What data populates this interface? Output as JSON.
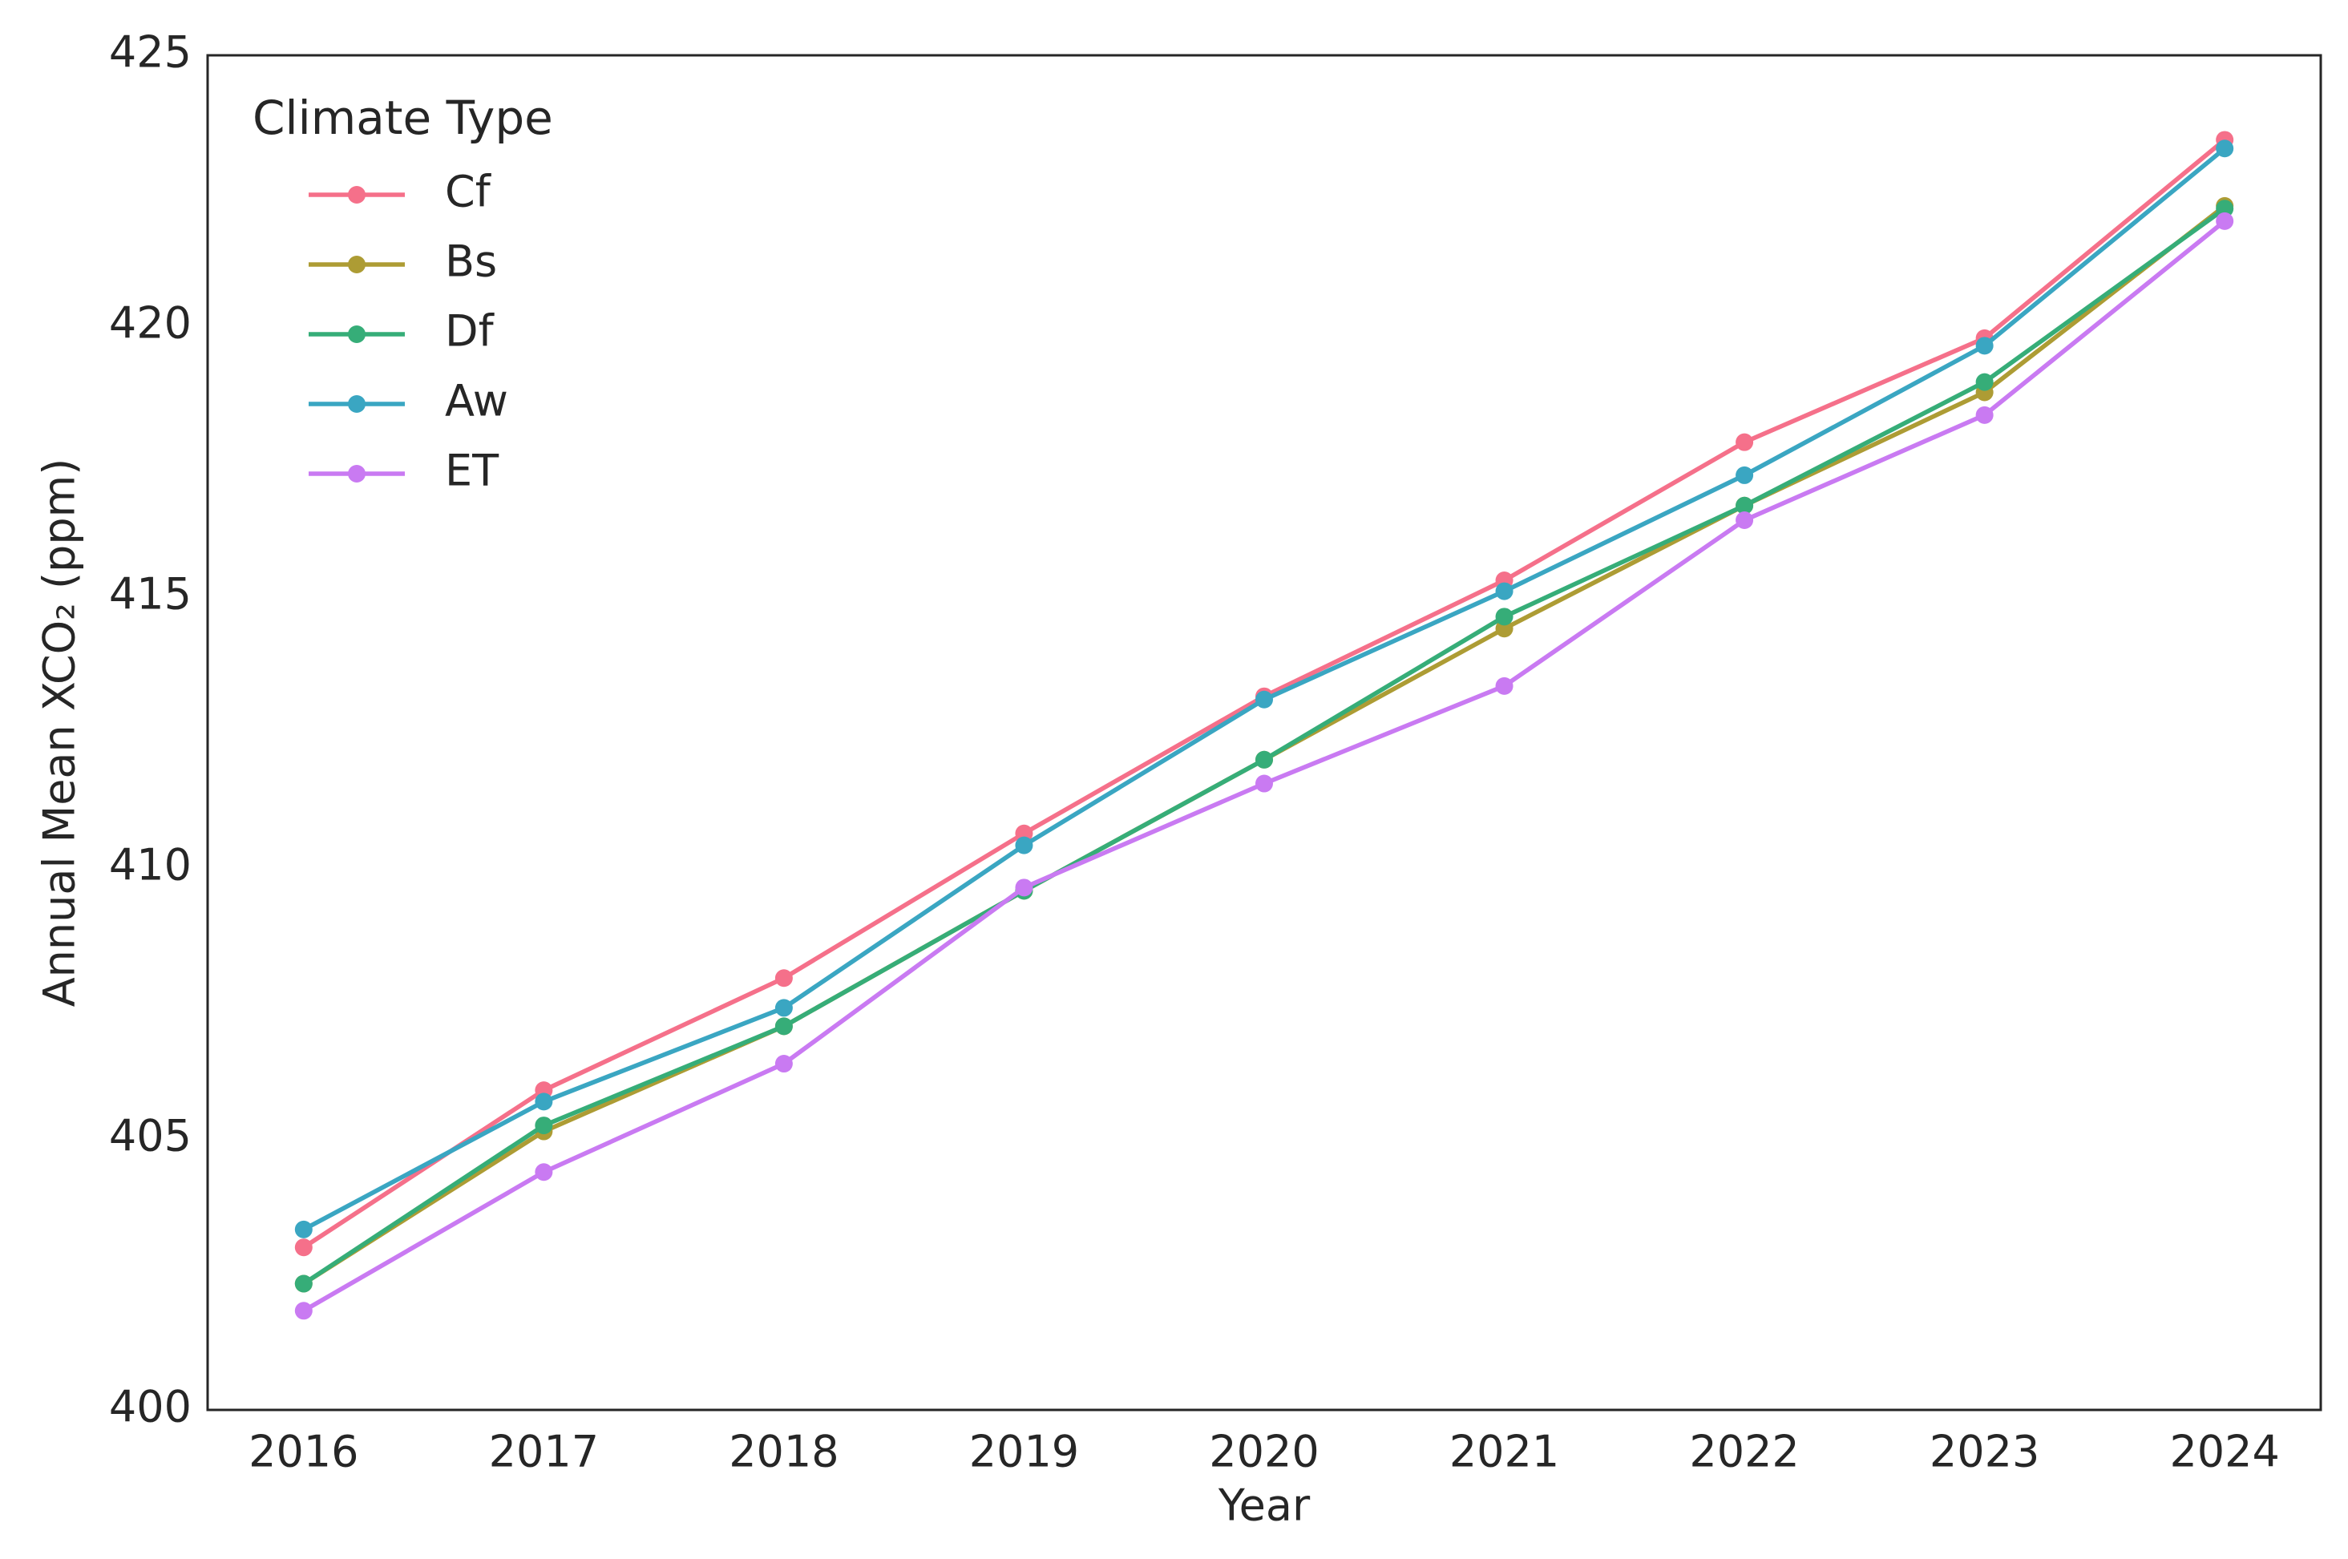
{
  "chart_data": {
    "type": "line",
    "x_label": "Year",
    "y_label": "Annual Mean XCO₂ (ppm)",
    "x": [
      2016,
      2017,
      2018,
      2019,
      2020,
      2021,
      2022,
      2023,
      2024
    ],
    "xlim": [
      2015.6,
      2024.4
    ],
    "xticks": [
      2016,
      2017,
      2018,
      2019,
      2020,
      2021,
      2022,
      2023,
      2024
    ],
    "ylim": [
      400,
      425
    ],
    "yticks": [
      400,
      405,
      410,
      415,
      420,
      425
    ],
    "grid": false,
    "legend_title": "Climate Type",
    "legend_loc": "upper left",
    "series": [
      {
        "name": "Cf",
        "color": "#f5708a",
        "values": [
          403.0,
          405.9,
          407.97,
          410.64,
          413.17,
          415.31,
          417.86,
          419.78,
          423.44
        ]
      },
      {
        "name": "Bs",
        "color": "#ad9c34",
        "values": [
          402.33,
          405.14,
          407.08,
          409.58,
          412.0,
          414.42,
          416.69,
          418.78,
          422.22
        ]
      },
      {
        "name": "Df",
        "color": "#36ad78",
        "values": [
          402.33,
          405.25,
          407.08,
          409.58,
          412.0,
          414.64,
          416.69,
          418.97,
          422.17
        ]
      },
      {
        "name": "Aw",
        "color": "#3aa6c2",
        "values": [
          403.33,
          405.69,
          407.42,
          410.42,
          413.11,
          415.11,
          417.25,
          419.64,
          423.28
        ]
      },
      {
        "name": "ET",
        "color": "#c97af2",
        "values": [
          401.83,
          404.39,
          406.39,
          409.64,
          411.56,
          413.36,
          416.42,
          418.36,
          421.94
        ]
      }
    ]
  }
}
